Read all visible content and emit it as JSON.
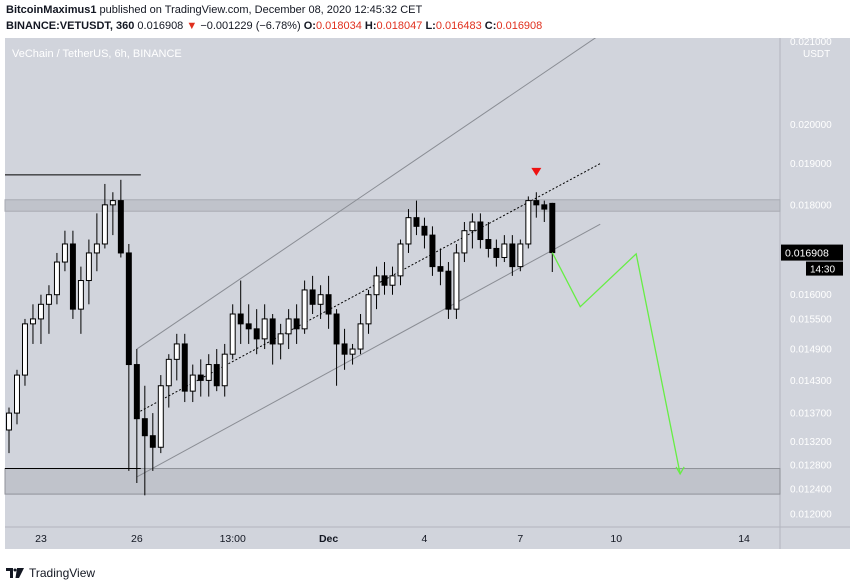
{
  "header": {
    "author": "BitcoinMaximus1",
    "published_text": "published on TradingView.com, December 08, 2020 12:45:32 CET",
    "symbol": "BINANCE:VETUSDT, 360",
    "last": "0.016908",
    "change": "−0.001229 (−6.78%)",
    "o_label": "O:",
    "o_value": "0.018034",
    "h_label": "H:",
    "h_value": "0.018047",
    "l_label": "L:",
    "l_value": "0.016483",
    "c_label": "C:",
    "c_value": "0.016908"
  },
  "footer": {
    "brand": "TradingView"
  },
  "colors": {
    "background": "#d1d4dc",
    "up_candle": "#ffffff",
    "down_candle": "#000000",
    "projection": "#66ee44",
    "marker": "#ee1111",
    "price_tag": "#000000"
  },
  "chart_data": {
    "type": "candlestick",
    "title": "VeChain / TetherUS, 6h, BINANCE",
    "y_axis_title": "USDT",
    "y_scale": "log",
    "ylim": [
      0.0118,
      0.0224
    ],
    "y_ticks": [
      "0.020000",
      "0.019000",
      "0.018000",
      "0.016000",
      "0.015500",
      "0.014900",
      "0.014300",
      "0.013700",
      "0.013200",
      "0.012800",
      "0.012400",
      "0.012000"
    ],
    "y_tick_top_partial": "0.021000",
    "x_ticks": [
      {
        "label": "23",
        "bar": 4
      },
      {
        "label": "26",
        "bar": 16
      },
      {
        "label": "13:00",
        "bar": 28
      },
      {
        "label": "Dec",
        "bar": 40
      },
      {
        "label": "4",
        "bar": 52
      },
      {
        "label": "7",
        "bar": 64
      },
      {
        "label": "10",
        "bar": 76
      },
      {
        "label": "14",
        "bar": 92
      }
    ],
    "x_range_bars": [
      -0.5,
      96.5
    ],
    "last_price_label": "0.016908",
    "countdown_label": "14:30",
    "candles": [
      [
        0.0134,
        0.0138,
        0.013,
        0.0137
      ],
      [
        0.0137,
        0.0145,
        0.0135,
        0.0144
      ],
      [
        0.0144,
        0.0155,
        0.0142,
        0.0154
      ],
      [
        0.0154,
        0.0158,
        0.015,
        0.0155
      ],
      [
        0.0155,
        0.016,
        0.015,
        0.0158
      ],
      [
        0.0158,
        0.0162,
        0.0152,
        0.016
      ],
      [
        0.016,
        0.0169,
        0.0158,
        0.0167
      ],
      [
        0.0167,
        0.0174,
        0.0165,
        0.0171
      ],
      [
        0.0171,
        0.0174,
        0.0155,
        0.0157
      ],
      [
        0.0157,
        0.0166,
        0.0152,
        0.0163
      ],
      [
        0.0163,
        0.0172,
        0.0158,
        0.0169
      ],
      [
        0.0169,
        0.0178,
        0.0165,
        0.0171
      ],
      [
        0.0171,
        0.0185,
        0.017,
        0.018
      ],
      [
        0.018,
        0.0183,
        0.0173,
        0.0181
      ],
      [
        0.0181,
        0.0186,
        0.0168,
        0.0169
      ],
      [
        0.0169,
        0.0171,
        0.0127,
        0.0146
      ],
      [
        0.0146,
        0.0149,
        0.0125,
        0.0136
      ],
      [
        0.0136,
        0.0142,
        0.0123,
        0.0133
      ],
      [
        0.0133,
        0.0137,
        0.0127,
        0.0131
      ],
      [
        0.0131,
        0.0144,
        0.013,
        0.0142
      ],
      [
        0.0142,
        0.0148,
        0.0138,
        0.0147
      ],
      [
        0.0147,
        0.0152,
        0.0143,
        0.015
      ],
      [
        0.015,
        0.0152,
        0.0139,
        0.0141
      ],
      [
        0.0141,
        0.0146,
        0.0139,
        0.0144
      ],
      [
        0.0144,
        0.0147,
        0.014,
        0.0143
      ],
      [
        0.0143,
        0.0148,
        0.014,
        0.0146
      ],
      [
        0.0146,
        0.0149,
        0.0141,
        0.0142
      ],
      [
        0.0142,
        0.015,
        0.014,
        0.0148
      ],
      [
        0.0148,
        0.0158,
        0.0147,
        0.0156
      ],
      [
        0.0156,
        0.0163,
        0.015,
        0.0154
      ],
      [
        0.0154,
        0.0158,
        0.015,
        0.0153
      ],
      [
        0.0153,
        0.0157,
        0.0148,
        0.0151
      ],
      [
        0.0151,
        0.0158,
        0.0149,
        0.0155
      ],
      [
        0.0155,
        0.0156,
        0.0146,
        0.015
      ],
      [
        0.015,
        0.0154,
        0.0147,
        0.0152
      ],
      [
        0.0152,
        0.0157,
        0.0149,
        0.0155
      ],
      [
        0.0155,
        0.0158,
        0.015,
        0.0153
      ],
      [
        0.0153,
        0.0163,
        0.0152,
        0.0161
      ],
      [
        0.0161,
        0.0164,
        0.0156,
        0.0158
      ],
      [
        0.0158,
        0.0162,
        0.0155,
        0.016
      ],
      [
        0.016,
        0.0164,
        0.0153,
        0.0156
      ],
      [
        0.0156,
        0.0157,
        0.0142,
        0.015
      ],
      [
        0.015,
        0.0153,
        0.0145,
        0.0148
      ],
      [
        0.0148,
        0.015,
        0.0146,
        0.0149
      ],
      [
        0.0149,
        0.0156,
        0.0148,
        0.0154
      ],
      [
        0.0154,
        0.0161,
        0.0152,
        0.016
      ],
      [
        0.016,
        0.0166,
        0.0157,
        0.0164
      ],
      [
        0.0164,
        0.0167,
        0.016,
        0.0162
      ],
      [
        0.0162,
        0.0166,
        0.016,
        0.0164
      ],
      [
        0.0164,
        0.0172,
        0.0162,
        0.0171
      ],
      [
        0.0171,
        0.0179,
        0.0169,
        0.0177
      ],
      [
        0.0177,
        0.0181,
        0.0173,
        0.0175
      ],
      [
        0.0175,
        0.0177,
        0.017,
        0.0173
      ],
      [
        0.0173,
        0.0175,
        0.0164,
        0.0166
      ],
      [
        0.0166,
        0.017,
        0.0162,
        0.0165
      ],
      [
        0.0165,
        0.0167,
        0.0155,
        0.0157
      ],
      [
        0.0157,
        0.0171,
        0.0155,
        0.0169
      ],
      [
        0.0169,
        0.0176,
        0.0167,
        0.0174
      ],
      [
        0.0174,
        0.0178,
        0.017,
        0.0176
      ],
      [
        0.0176,
        0.0178,
        0.017,
        0.0172
      ],
      [
        0.0172,
        0.0176,
        0.0168,
        0.017
      ],
      [
        0.017,
        0.0172,
        0.0166,
        0.0168
      ],
      [
        0.0168,
        0.0173,
        0.0167,
        0.0171
      ],
      [
        0.0171,
        0.0173,
        0.0164,
        0.0166
      ],
      [
        0.0166,
        0.0172,
        0.0165,
        0.0171
      ],
      [
        0.0171,
        0.0182,
        0.017,
        0.0181
      ],
      [
        0.0181,
        0.0183,
        0.0177,
        0.018
      ],
      [
        0.018,
        0.0181,
        0.0176,
        0.0179
      ],
      [
        0.018034,
        0.018047,
        0.016483,
        0.016908
      ]
    ],
    "projection_path": [
      [
        68,
        0.016908
      ],
      [
        71.5,
        0.01575
      ],
      [
        78.5,
        0.01688
      ],
      [
        84,
        0.01265
      ]
    ],
    "marker": {
      "bar": 66,
      "price": 0.0186
    },
    "channel_upper": [
      [
        16,
        0.0149
      ],
      [
        74,
        0.0225
      ]
    ],
    "channel_mid": [
      [
        16,
        0.0137
      ],
      [
        74,
        0.019
      ]
    ],
    "channel_lower": [
      [
        16,
        0.0126
      ],
      [
        74,
        0.01755
      ]
    ],
    "resistance_zone": [
      0.01785,
      0.01812
    ],
    "support_zone": [
      0.01232,
      0.01274
    ],
    "h_lines": [
      {
        "price": 0.01872,
        "from_bar": -0.5,
        "to_bar": 16.5
      },
      {
        "price": 0.01274,
        "from_bar": -0.5,
        "to_bar": 16.5
      }
    ]
  }
}
